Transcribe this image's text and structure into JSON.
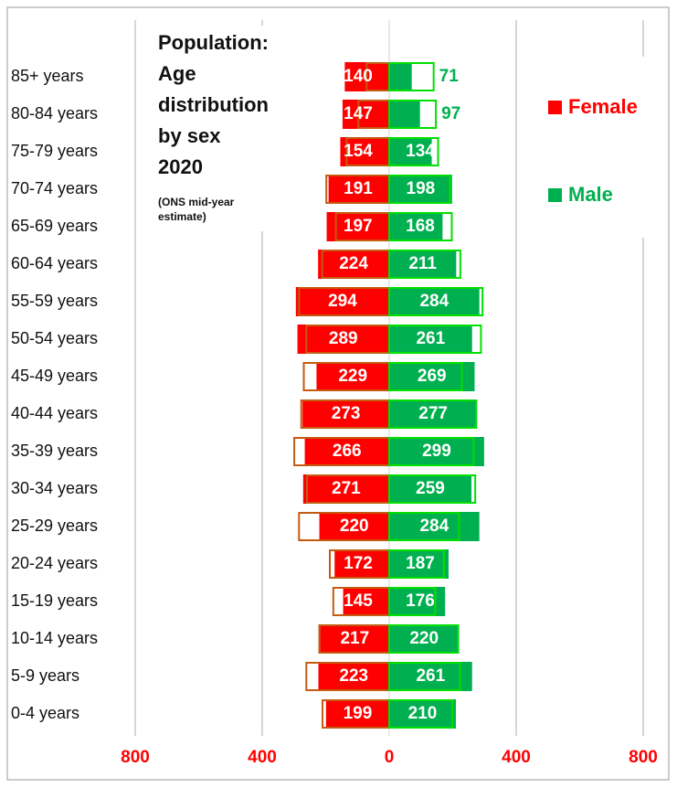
{
  "chart_data": {
    "type": "pyramid",
    "title": [
      "Population:",
      "Age",
      "distribution",
      "by sex",
      "2020"
    ],
    "subtitle": [
      "(ONS mid-year",
      "estimate)"
    ],
    "categories": [
      "85+ years",
      "80-84 years",
      "75-79 years",
      "70-74 years",
      "65-69 years",
      "60-64 years",
      "55-59 years",
      "50-54 years",
      "45-49 years",
      "40-44 years",
      "35-39 years",
      "30-34 years",
      "25-29 years",
      "20-24 years",
      "15-19 years",
      "10-14 years",
      "5-9 years",
      "0-4 years"
    ],
    "series": [
      {
        "name": "Female",
        "color": "#ff0000",
        "outline_color": "#c55a11",
        "side": "left",
        "values": [
          140,
          147,
          154,
          191,
          197,
          224,
          294,
          289,
          229,
          273,
          266,
          271,
          220,
          172,
          145,
          217,
          223,
          199
        ]
      },
      {
        "name": "Male",
        "color": "#00b050",
        "outline_color": "#00e000",
        "side": "right",
        "values": [
          71,
          97,
          134,
          198,
          168,
          211,
          284,
          261,
          269,
          277,
          299,
          259,
          284,
          187,
          176,
          220,
          261,
          210
        ]
      }
    ],
    "mirror_outline": true,
    "xlim": [
      -800,
      800
    ],
    "xticks": [
      {
        "value": -800,
        "label": "800"
      },
      {
        "value": -400,
        "label": "400"
      },
      0,
      400,
      800
    ],
    "tick_color": "#ff0000",
    "grid": true
  }
}
